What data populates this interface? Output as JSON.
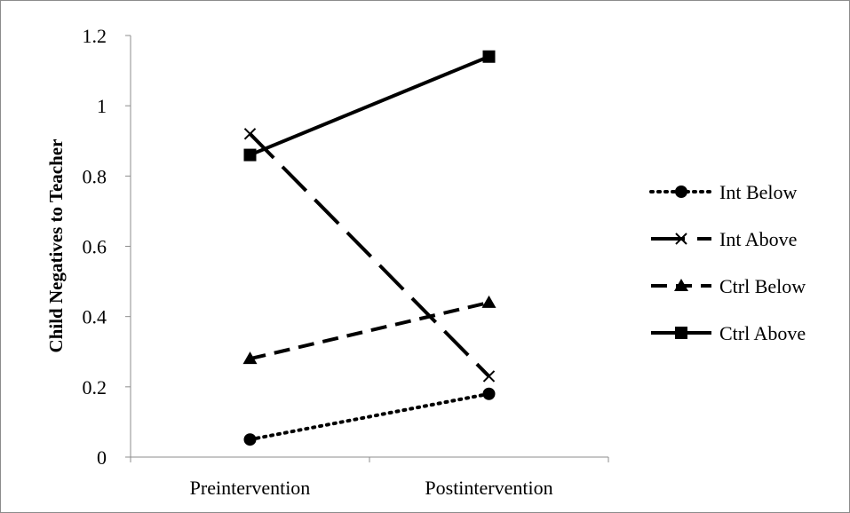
{
  "chart_data": {
    "type": "line",
    "title": "",
    "xlabel": "",
    "ylabel": "Child Negatives to Teacher",
    "categories": [
      "Preintervention",
      "Postintervention"
    ],
    "ylim": [
      0,
      1.2
    ],
    "yticks": [
      "0",
      "0.2",
      "0.4",
      "0.6",
      "0.8",
      "1",
      "1.2"
    ],
    "grid": false,
    "legend_position": "right",
    "series": [
      {
        "name": "Int Below",
        "values": [
          0.05,
          0.18
        ],
        "marker": "circle",
        "dash": "dotted",
        "color": "#000000"
      },
      {
        "name": "Int Above",
        "values": [
          0.92,
          0.23
        ],
        "marker": "x",
        "dash": "long-dash",
        "color": "#000000"
      },
      {
        "name": "Ctrl Below",
        "values": [
          0.28,
          0.44
        ],
        "marker": "triangle",
        "dash": "dashed",
        "color": "#000000"
      },
      {
        "name": "Ctrl Above",
        "values": [
          0.86,
          1.14
        ],
        "marker": "square",
        "dash": "solid",
        "color": "#000000"
      }
    ]
  }
}
